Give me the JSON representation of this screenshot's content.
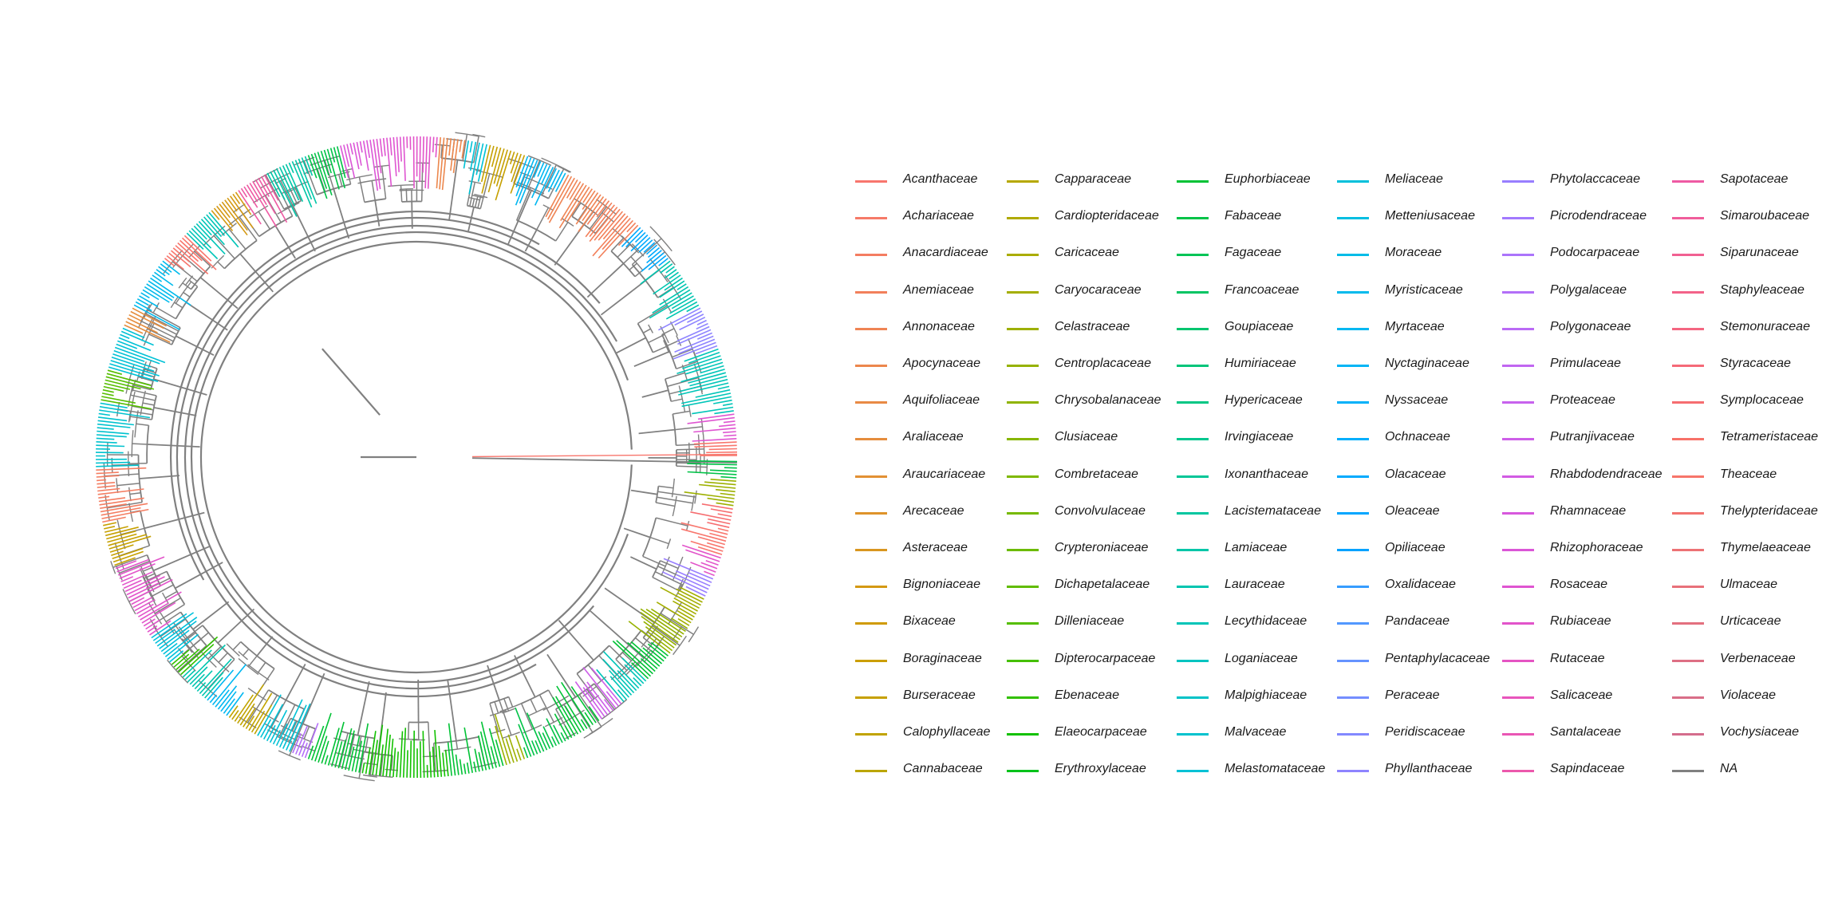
{
  "diagram": {
    "type": "circular-phylogenetic-tree",
    "branch_color": "#808080",
    "families": [
      {
        "name": "Acanthaceae",
        "color": "#F8766D"
      },
      {
        "name": "Achariaceae",
        "color": "#F67A68"
      },
      {
        "name": "Anacardiaceae",
        "color": "#F47D61"
      },
      {
        "name": "Anemiaceae",
        "color": "#F2805B"
      },
      {
        "name": "Annonaceae",
        "color": "#EF8454"
      },
      {
        "name": "Apocynaceae",
        "color": "#EC874D"
      },
      {
        "name": "Aquifoliaceae",
        "color": "#E98A45"
      },
      {
        "name": "Araliaceae",
        "color": "#E58D3D"
      },
      {
        "name": "Araucariaceae",
        "color": "#E29034"
      },
      {
        "name": "Arecaceae",
        "color": "#DE932A"
      },
      {
        "name": "Asteraceae",
        "color": "#D9961F"
      },
      {
        "name": "Bignoniaceae",
        "color": "#D49913"
      },
      {
        "name": "Bixaceae",
        "color": "#D09B06"
      },
      {
        "name": "Boraginaceae",
        "color": "#CB9E00"
      },
      {
        "name": "Burseraceae",
        "color": "#C6A000"
      },
      {
        "name": "Calophyllaceae",
        "color": "#C1A300"
      },
      {
        "name": "Cannabaceae",
        "color": "#BBA500"
      },
      {
        "name": "Capparaceae",
        "color": "#B6A800"
      },
      {
        "name": "Cardiopteridaceae",
        "color": "#B0AA00"
      },
      {
        "name": "Caricaceae",
        "color": "#AAAC00"
      },
      {
        "name": "Caryocaraceae",
        "color": "#A4AE00"
      },
      {
        "name": "Celastraceae",
        "color": "#9DB000"
      },
      {
        "name": "Centroplacaceae",
        "color": "#96B200"
      },
      {
        "name": "Chrysobalanaceae",
        "color": "#8FB400"
      },
      {
        "name": "Clusiaceae",
        "color": "#87B600"
      },
      {
        "name": "Combretaceae",
        "color": "#7FB800"
      },
      {
        "name": "Convolvulaceae",
        "color": "#76B900"
      },
      {
        "name": "Crypteroniaceae",
        "color": "#6CBB00"
      },
      {
        "name": "Dichapetalaceae",
        "color": "#61BC00"
      },
      {
        "name": "Dilleniaceae",
        "color": "#55BE00"
      },
      {
        "name": "Dipterocarpaceae",
        "color": "#46BF00"
      },
      {
        "name": "Ebenaceae",
        "color": "#32C000"
      },
      {
        "name": "Elaeocarpaceae",
        "color": "#12C100"
      },
      {
        "name": "Erythroxylaceae",
        "color": "#00C21B"
      },
      {
        "name": "Euphorbiaceae",
        "color": "#00C235"
      },
      {
        "name": "Fabaceae",
        "color": "#00C347"
      },
      {
        "name": "Fagaceae",
        "color": "#00C456"
      },
      {
        "name": "Francoaceae",
        "color": "#00C463"
      },
      {
        "name": "Goupiaceae",
        "color": "#00C56F"
      },
      {
        "name": "Humiriaceae",
        "color": "#00C57A"
      },
      {
        "name": "Hypericaceae",
        "color": "#00C684"
      },
      {
        "name": "Irvingiaceae",
        "color": "#00C68E"
      },
      {
        "name": "Ixonanthaceae",
        "color": "#00C697"
      },
      {
        "name": "Lacistemataceae",
        "color": "#00C6A0"
      },
      {
        "name": "Lamiaceae",
        "color": "#00C6A8"
      },
      {
        "name": "Lauraceae",
        "color": "#00C5B0"
      },
      {
        "name": "Lecythidaceae",
        "color": "#00C5B8"
      },
      {
        "name": "Loganiaceae",
        "color": "#00C4C0"
      },
      {
        "name": "Malpighiaceae",
        "color": "#00C3C7"
      },
      {
        "name": "Malvaceae",
        "color": "#00C2CE"
      },
      {
        "name": "Melastomataceae",
        "color": "#00C1D5"
      },
      {
        "name": "Meliaceae",
        "color": "#00C0DB"
      },
      {
        "name": "Metteniusaceae",
        "color": "#00BEE1"
      },
      {
        "name": "Moraceae",
        "color": "#00BCE7"
      },
      {
        "name": "Myristicaceae",
        "color": "#00BAEC"
      },
      {
        "name": "Myrtaceae",
        "color": "#00B7F1"
      },
      {
        "name": "Nyctaginaceae",
        "color": "#00B5F5"
      },
      {
        "name": "Nyssaceae",
        "color": "#00B1F9"
      },
      {
        "name": "Ochnaceae",
        "color": "#00AEFC"
      },
      {
        "name": "Olacaceae",
        "color": "#00AAFE"
      },
      {
        "name": "Oleaceae",
        "color": "#00A6FF"
      },
      {
        "name": "Opiliaceae",
        "color": "#00A2FF"
      },
      {
        "name": "Oxalidaceae",
        "color": "#379DFF"
      },
      {
        "name": "Pandaceae",
        "color": "#5298FF"
      },
      {
        "name": "Pentaphylacaceae",
        "color": "#6593FF"
      },
      {
        "name": "Peraceae",
        "color": "#748EFF"
      },
      {
        "name": "Peridiscaceae",
        "color": "#8289FF"
      },
      {
        "name": "Phyllanthaceae",
        "color": "#8E84FF"
      },
      {
        "name": "Phytolaccaceae",
        "color": "#987EFF"
      },
      {
        "name": "Picrodendraceae",
        "color": "#A279FE"
      },
      {
        "name": "Podocarpaceae",
        "color": "#AB74FB"
      },
      {
        "name": "Polygalaceae",
        "color": "#B36FF8"
      },
      {
        "name": "Polygonaceae",
        "color": "#BA6AF5"
      },
      {
        "name": "Primulaceae",
        "color": "#C166F1"
      },
      {
        "name": "Proteaceae",
        "color": "#C762ED"
      },
      {
        "name": "Putranjivaceae",
        "color": "#CD5EE8"
      },
      {
        "name": "Rhabdodendraceae",
        "color": "#D25BE3"
      },
      {
        "name": "Rhamnaceae",
        "color": "#D758DD"
      },
      {
        "name": "Rhizophoraceae",
        "color": "#DB56D7"
      },
      {
        "name": "Rosaceae",
        "color": "#DF55D1"
      },
      {
        "name": "Rubiaceae",
        "color": "#E254CA"
      },
      {
        "name": "Rutaceae",
        "color": "#E554C3"
      },
      {
        "name": "Salicaceae",
        "color": "#E855BC"
      },
      {
        "name": "Santalaceae",
        "color": "#EA56B4"
      },
      {
        "name": "Sapindaceae",
        "color": "#EC58AC"
      },
      {
        "name": "Sapotaceae",
        "color": "#EE5AA3"
      },
      {
        "name": "Simaroubaceae",
        "color": "#F05D9B"
      },
      {
        "name": "Siparunaceae",
        "color": "#F16092"
      },
      {
        "name": "Staphyleaceae",
        "color": "#F36389"
      },
      {
        "name": "Stemonuraceae",
        "color": "#F46681"
      },
      {
        "name": "Styracaceae",
        "color": "#F56A78"
      },
      {
        "name": "Symplocaceae",
        "color": "#F66D70"
      },
      {
        "name": "Tetrameristaceae",
        "color": "#F77168"
      },
      {
        "name": "Theaceae",
        "color": "#F7756A"
      },
      {
        "name": "Thelypteridaceae",
        "color": "#F2736F"
      },
      {
        "name": "Thymelaeaceae",
        "color": "#ED7275"
      },
      {
        "name": "Ulmaceae",
        "color": "#E8717A"
      },
      {
        "name": "Urticaceae",
        "color": "#E3707F"
      },
      {
        "name": "Verbenaceae",
        "color": "#DE6F84"
      },
      {
        "name": "Violaceae",
        "color": "#D96E88"
      },
      {
        "name": "Vochysiaceae",
        "color": "#D46D8C"
      },
      {
        "name": "NA",
        "color": "#808080"
      }
    ]
  }
}
